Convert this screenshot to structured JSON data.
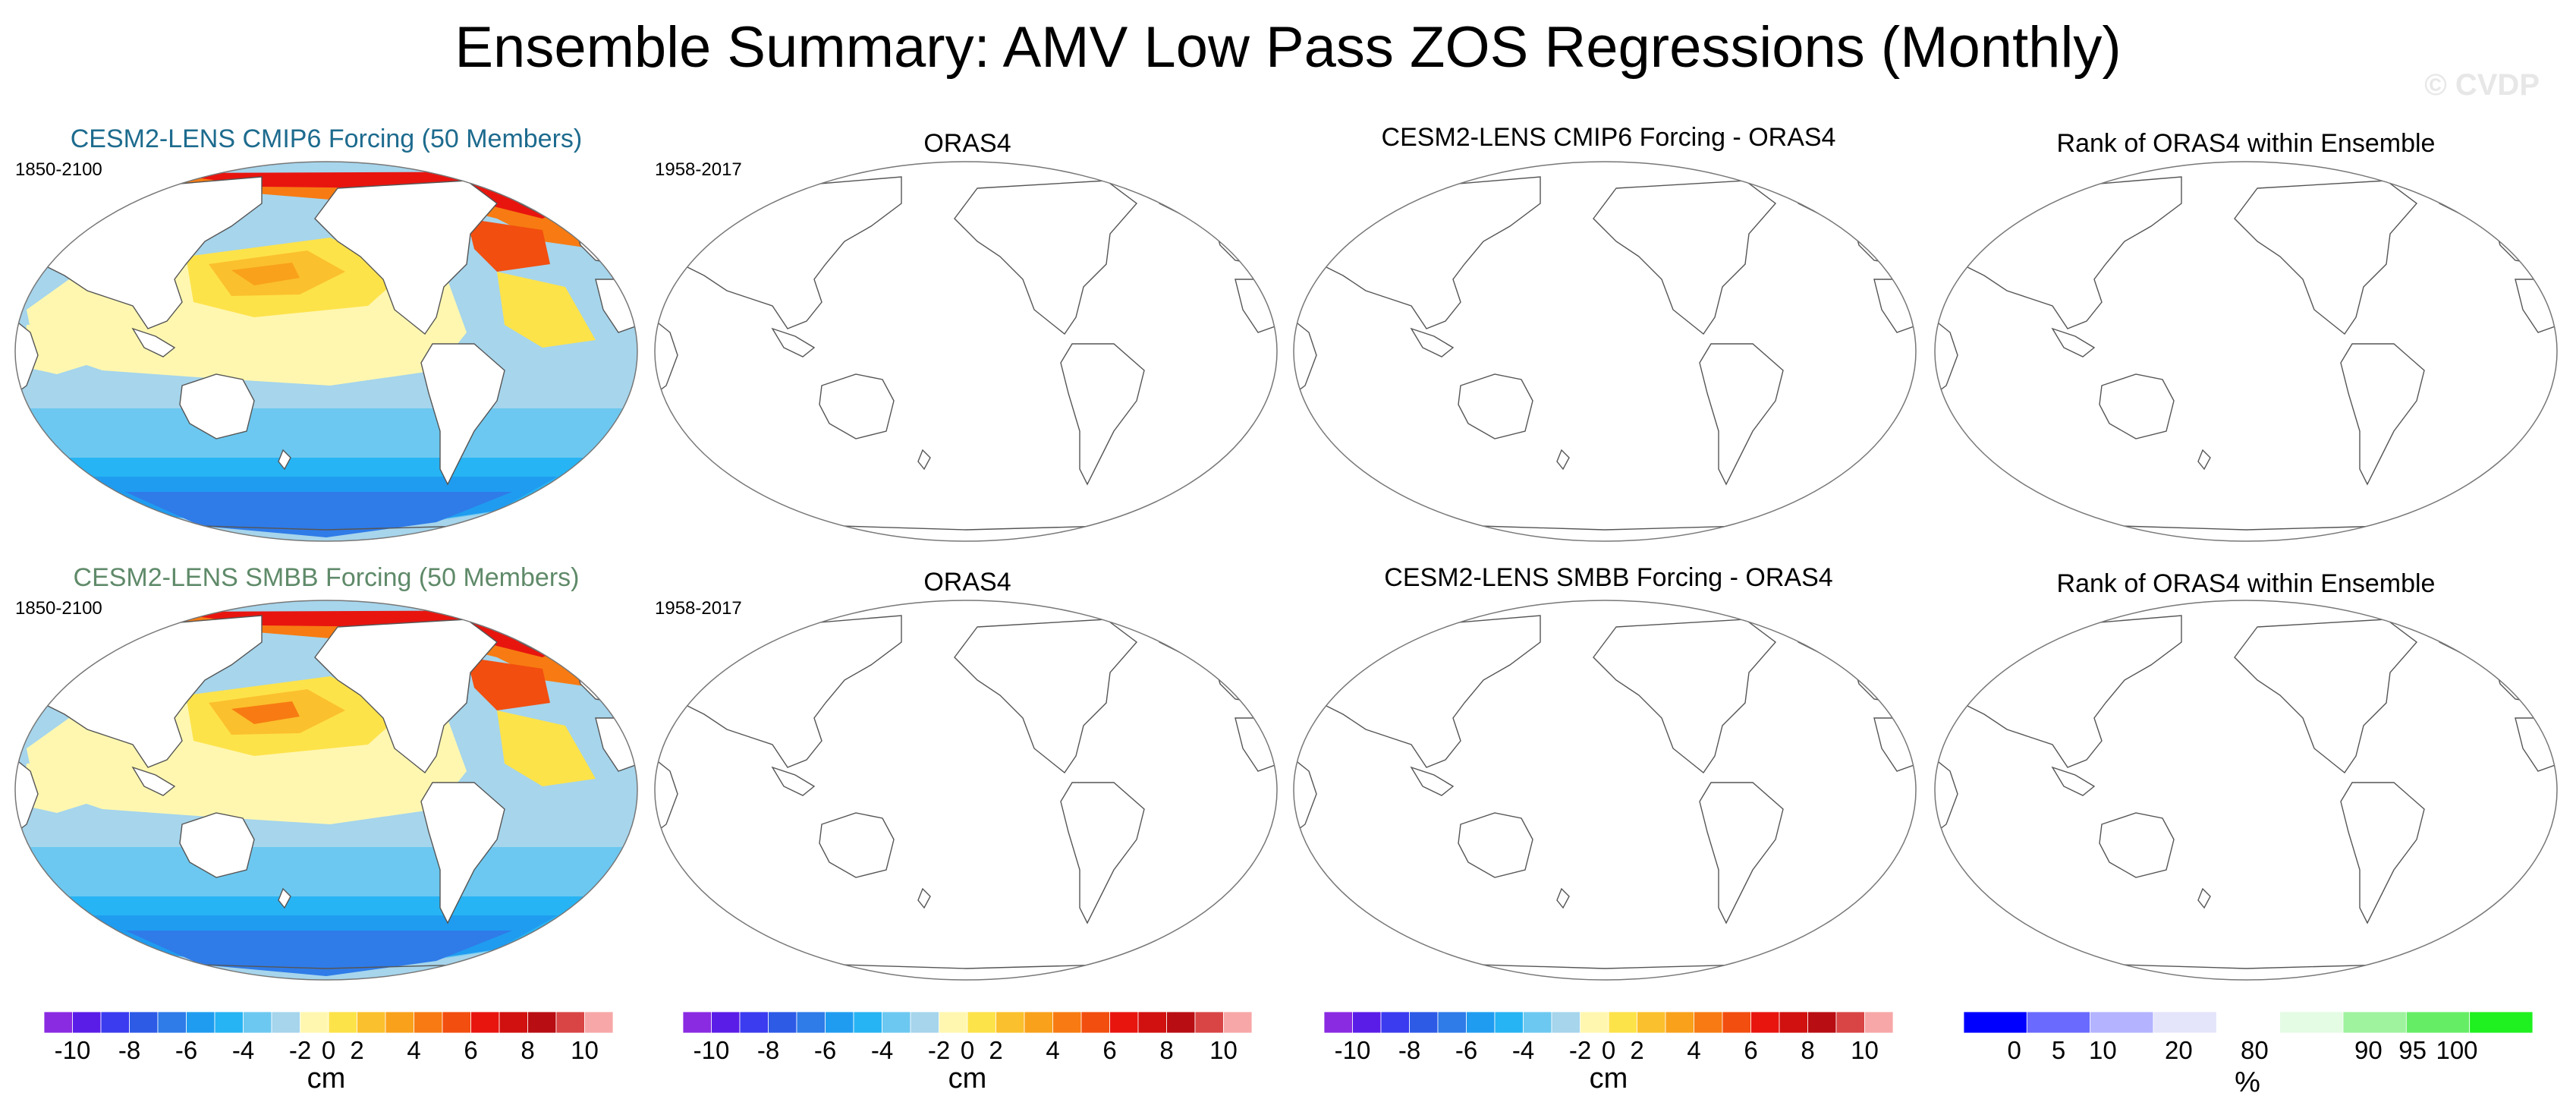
{
  "title": "Ensemble Summary: AMV Low Pass ZOS Regressions (Monthly)",
  "watermark": "© CVDP",
  "colors": {
    "ens1_title": "#1d6b8e",
    "ens2_title": "#5f8a69"
  },
  "chart_data": [
    {
      "type": "heatmap",
      "panel": "row1-col1",
      "title": "CESM2-LENS CMIP6 Forcing (50 Members)",
      "period": "1850-2100",
      "field": "ensemble-mean ZOS regression on AMV",
      "units": "cm"
    },
    {
      "type": "heatmap",
      "panel": "row1-col2",
      "title": "ORAS4",
      "period": "1958-2017",
      "field": "empty (no data drawn)",
      "units": "cm"
    },
    {
      "type": "heatmap",
      "panel": "row1-col3",
      "title": "CESM2-LENS CMIP6 Forcing - ORAS4",
      "field": "empty (no data drawn)",
      "units": "cm"
    },
    {
      "type": "heatmap",
      "panel": "row1-col4",
      "title": "Rank of ORAS4 within Ensemble",
      "field": "empty (no data drawn)",
      "units": "%"
    },
    {
      "type": "heatmap",
      "panel": "row2-col1",
      "title": "CESM2-LENS SMBB Forcing (50 Members)",
      "period": "1850-2100",
      "field": "ensemble-mean ZOS regression on AMV",
      "units": "cm"
    },
    {
      "type": "heatmap",
      "panel": "row2-col2",
      "title": "ORAS4",
      "period": "1958-2017",
      "field": "empty (no data drawn)",
      "units": "cm"
    },
    {
      "type": "heatmap",
      "panel": "row2-col3",
      "title": "CESM2-LENS SMBB Forcing - ORAS4",
      "field": "empty (no data drawn)",
      "units": "cm"
    },
    {
      "type": "heatmap",
      "panel": "row2-col4",
      "title": "Rank of ORAS4 within Ensemble",
      "field": "empty (no data drawn)",
      "units": "%"
    }
  ],
  "colorbar_cm": {
    "unit": "cm",
    "tick_labels": [
      "-10",
      "-8",
      "-6",
      "-4",
      "-2",
      "0",
      "2",
      "4",
      "6",
      "8",
      "10"
    ],
    "colors": [
      "#8a2be2",
      "#5a1de8",
      "#3b3bf0",
      "#2d5be6",
      "#2f7be8",
      "#1f9cf0",
      "#27b4f4",
      "#6cc8f0",
      "#a6d5ec",
      "#fff7b0",
      "#fde34a",
      "#fbc02d",
      "#f9a11b",
      "#f77b12",
      "#f24e0f",
      "#e8150f",
      "#d0110f",
      "#b80d12",
      "#d94545",
      "#f7a7a7"
    ]
  },
  "colorbar_rank": {
    "unit": "%",
    "tick_labels": [
      "0",
      "5",
      "10",
      "20",
      "80",
      "90",
      "95",
      "100"
    ],
    "colors": [
      "#0000ff",
      "#6a6aff",
      "#b3b3ff",
      "#e4e4fb",
      "#ffffff",
      "#e4fbe4",
      "#9ff39f",
      "#66ed66",
      "#1ff01f"
    ]
  }
}
